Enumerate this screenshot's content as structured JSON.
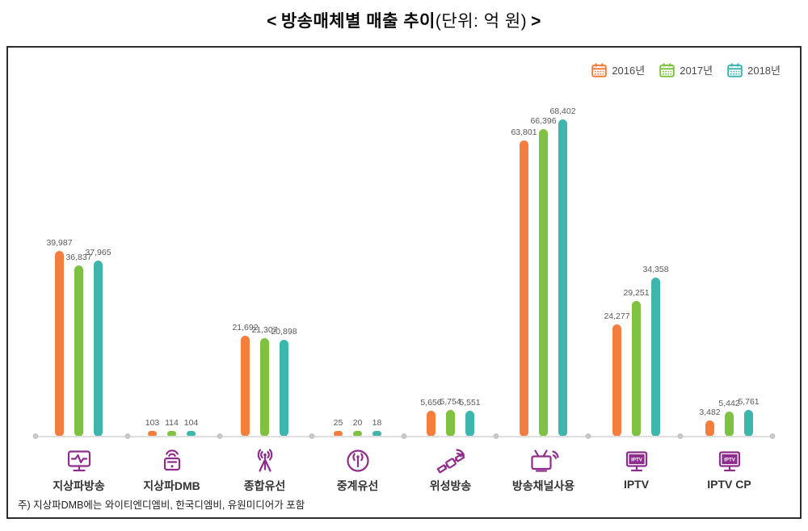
{
  "title": {
    "open": "<",
    "text": "방송매체별 매출 추이",
    "unit": "(단위: 억 원)",
    "close": ">"
  },
  "legend": [
    {
      "label": "2016년",
      "color": "#F47E3E"
    },
    {
      "label": "2017년",
      "color": "#7FC241"
    },
    {
      "label": "2018년",
      "color": "#3FB6AD"
    }
  ],
  "chart_data": {
    "type": "bar",
    "title": "방송매체별 매출 추이",
    "unit": "억 원",
    "categories": [
      "지상파방송",
      "지상파DMB",
      "종합유선",
      "중계유선",
      "위성방송",
      "방송채널사용",
      "IPTV",
      "IPTV CP"
    ],
    "series": [
      {
        "name": "2016년",
        "values": [
          39987,
          103,
          21692,
          25,
          5656,
          63801,
          24277,
          3482
        ]
      },
      {
        "name": "2017년",
        "values": [
          36837,
          114,
          21307,
          20,
          5754,
          66396,
          29251,
          5442
        ]
      },
      {
        "name": "2018년",
        "values": [
          37965,
          104,
          20898,
          18,
          5551,
          68402,
          34358,
          5761
        ]
      }
    ],
    "ylim": [
      0,
      70000
    ],
    "grid": false,
    "legend_position": "top-right"
  },
  "icons": [
    "terrestrial-tv-icon",
    "dmb-device-icon",
    "cable-antenna-icon",
    "relay-antenna-icon",
    "satellite-icon",
    "broadcast-channel-icon",
    "iptv-monitor-icon",
    "iptv-monitor-icon"
  ],
  "icon_color": "#8E2D8C",
  "iptv_icon_text": "IPTV",
  "footnote": "주) 지상파DMB에는 와이티엔디엠비, 한국디엠비, 유원미디어가 포함"
}
